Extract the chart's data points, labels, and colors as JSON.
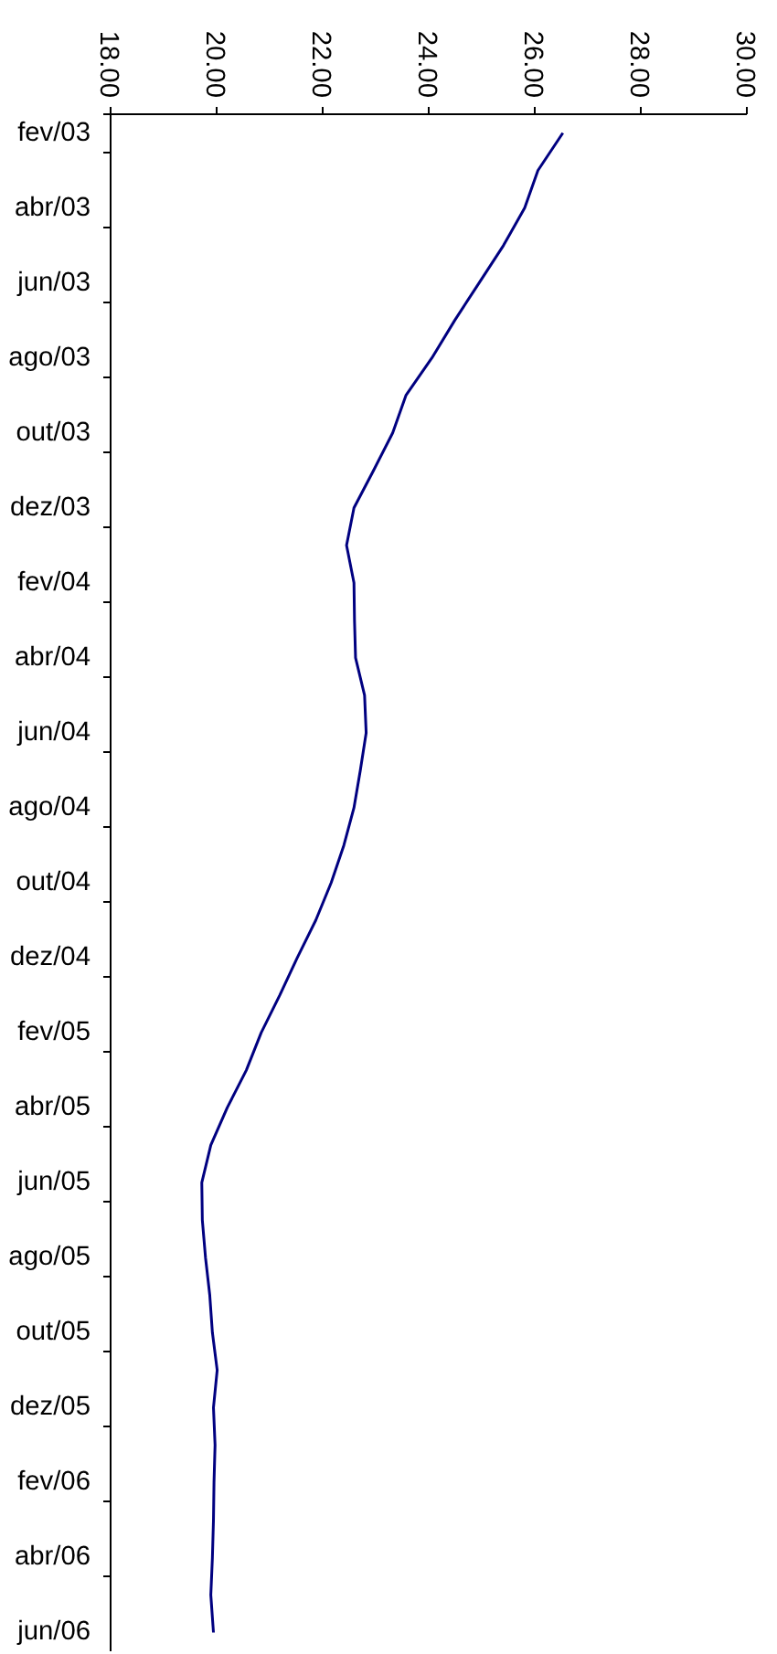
{
  "chart_data": {
    "type": "line",
    "orientation": "horizontal",
    "categories": [
      "fev/03",
      null,
      "abr/03",
      null,
      "jun/03",
      null,
      "ago/03",
      null,
      "out/03",
      null,
      "dez/03",
      null,
      "fev/04",
      null,
      "abr/04",
      null,
      "jun/04",
      null,
      "ago/04",
      null,
      "out/04",
      null,
      "dez/04",
      null,
      "fev/05",
      null,
      "abr/05",
      null,
      "jun/05",
      null,
      "ago/05",
      null,
      "out/05",
      null,
      "dez/05",
      null,
      "fev/06",
      null,
      "abr/06",
      null,
      "jun/06"
    ],
    "values": [
      26.53,
      26.06,
      25.81,
      25.41,
      24.95,
      24.49,
      24.06,
      23.57,
      23.32,
      22.96,
      22.59,
      22.45,
      22.59,
      22.6,
      22.62,
      22.79,
      22.82,
      22.71,
      22.59,
      22.4,
      22.16,
      21.87,
      21.52,
      21.19,
      20.84,
      20.56,
      20.2,
      19.89,
      19.72,
      19.73,
      19.79,
      19.87,
      19.92,
      20.01,
      19.94,
      19.97,
      19.95,
      19.94,
      19.92,
      19.89,
      19.94
    ],
    "color": "#000080",
    "xlim": [
      18,
      30
    ],
    "xticks": [
      {
        "value": 18,
        "label": "18.00"
      },
      {
        "value": 20,
        "label": "20.00"
      },
      {
        "value": 22,
        "label": "22.00"
      },
      {
        "value": 24,
        "label": "24.00"
      },
      {
        "value": 26,
        "label": "26.00"
      },
      {
        "value": 28,
        "label": "28.00"
      },
      {
        "value": 30,
        "label": "30.00"
      }
    ],
    "grid": false
  }
}
